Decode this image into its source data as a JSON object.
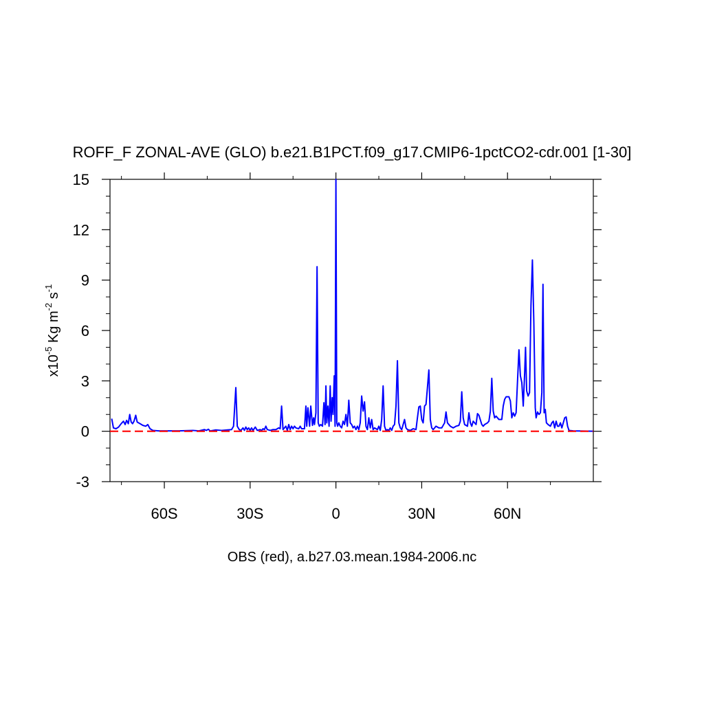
{
  "chart_data": {
    "type": "line",
    "title": "ROFF_F ZONAL-AVE (GLO) b.e21.B1PCT.f09_g17.CMIP6-1pctCO2-cdr.001 [1-30]",
    "ylabel": {
      "prefix": "x10",
      "exp1": "-5",
      "mid": " Kg m",
      "exp2": "-2",
      "mid2": " s",
      "exp3": "-1"
    },
    "xlabel": "OBS (red), a.b27.03.mean.1984-2006.nc",
    "xlim": [
      -79,
      90
    ],
    "ylim": [
      -3,
      15
    ],
    "x_ticks": [
      {
        "value": -60,
        "label": "60S"
      },
      {
        "value": -30,
        "label": "30S"
      },
      {
        "value": 0,
        "label": "0"
      },
      {
        "value": 30,
        "label": "30N"
      },
      {
        "value": 60,
        "label": "60N"
      }
    ],
    "y_ticks": [
      {
        "value": -3,
        "label": "-3"
      },
      {
        "value": 0,
        "label": "0"
      },
      {
        "value": 3,
        "label": "3"
      },
      {
        "value": 6,
        "label": "6"
      },
      {
        "value": 9,
        "label": "9"
      },
      {
        "value": 12,
        "label": "12"
      },
      {
        "value": 15,
        "label": "15"
      }
    ],
    "series": [
      {
        "color": "#0000ff",
        "style": "solid",
        "points": [
          [
            -78.4,
            0.75
          ],
          [
            -77.8,
            0.2
          ],
          [
            -76.9,
            0.15
          ],
          [
            -76.0,
            0.25
          ],
          [
            -75.1,
            0.45
          ],
          [
            -74.3,
            0.6
          ],
          [
            -73.7,
            0.4
          ],
          [
            -73.2,
            0.65
          ],
          [
            -72.6,
            0.45
          ],
          [
            -72.1,
            1.0
          ],
          [
            -71.6,
            0.55
          ],
          [
            -71.1,
            0.45
          ],
          [
            -70.6,
            0.6
          ],
          [
            -70.0,
            0.95
          ],
          [
            -69.5,
            0.55
          ],
          [
            -68.5,
            0.45
          ],
          [
            -67.5,
            0.35
          ],
          [
            -66.5,
            0.3
          ],
          [
            -65.8,
            0.4
          ],
          [
            -65.0,
            0.15
          ],
          [
            -64.0,
            0.05
          ],
          [
            -62.0,
            0.02
          ],
          [
            -55.0,
            0.02
          ],
          [
            -50.0,
            0.05
          ],
          [
            -48.0,
            0.02
          ],
          [
            -46.0,
            0.1
          ],
          [
            -45.3,
            0.05
          ],
          [
            -44.6,
            0.12
          ],
          [
            -44.0,
            0.02
          ],
          [
            -42.0,
            0.08
          ],
          [
            -40.0,
            0.05
          ],
          [
            -38.0,
            0.08
          ],
          [
            -36.5,
            0.1
          ],
          [
            -35.8,
            0.3
          ],
          [
            -35.0,
            2.6
          ],
          [
            -34.5,
            0.3
          ],
          [
            -33.8,
            0.1
          ],
          [
            -33.2,
            0.05
          ],
          [
            -32.5,
            0.2
          ],
          [
            -32.0,
            0.05
          ],
          [
            -31.5,
            0.25
          ],
          [
            -31.0,
            0.1
          ],
          [
            -30.5,
            0.2
          ],
          [
            -30.0,
            0.05
          ],
          [
            -29.5,
            0.2
          ],
          [
            -29.0,
            0.05
          ],
          [
            -28.2,
            0.25
          ],
          [
            -27.5,
            0.05
          ],
          [
            -26.5,
            0.1
          ],
          [
            -26.0,
            0.05
          ],
          [
            -25.5,
            0.15
          ],
          [
            -25.0,
            0.1
          ],
          [
            -24.5,
            0.3
          ],
          [
            -24.0,
            0.1
          ],
          [
            -23.0,
            0.05
          ],
          [
            -22.0,
            0.1
          ],
          [
            -21.0,
            0.1
          ],
          [
            -20.0,
            0.2
          ],
          [
            -19.5,
            0.15
          ],
          [
            -19.0,
            1.5
          ],
          [
            -18.5,
            0.1
          ],
          [
            -17.5,
            0.3
          ],
          [
            -17.0,
            0.05
          ],
          [
            -16.5,
            0.4
          ],
          [
            -16.0,
            0.1
          ],
          [
            -15.5,
            0.3
          ],
          [
            -15.0,
            0.15
          ],
          [
            -14.5,
            0.3
          ],
          [
            -14.0,
            0.2
          ],
          [
            -13.0,
            0.15
          ],
          [
            -12.5,
            0.3
          ],
          [
            -12.0,
            0.15
          ],
          [
            -11.0,
            0.15
          ],
          [
            -10.5,
            1.5
          ],
          [
            -10.2,
            0.3
          ],
          [
            -9.8,
            1.4
          ],
          [
            -9.2,
            0.3
          ],
          [
            -8.8,
            1.5
          ],
          [
            -8.2,
            0.35
          ],
          [
            -7.8,
            0.8
          ],
          [
            -7.5,
            0.4
          ],
          [
            -7.0,
            1.1
          ],
          [
            -6.6,
            9.8
          ],
          [
            -6.2,
            0.5
          ],
          [
            -5.8,
            0.3
          ],
          [
            -5.3,
            0.4
          ],
          [
            -4.7,
            0.3
          ],
          [
            -4.2,
            1.7
          ],
          [
            -3.8,
            0.4
          ],
          [
            -3.5,
            2.7
          ],
          [
            -3.2,
            0.5
          ],
          [
            -2.8,
            1.5
          ],
          [
            -2.4,
            0.3
          ],
          [
            -2.0,
            2.7
          ],
          [
            -1.7,
            0.6
          ],
          [
            -1.3,
            2.0
          ],
          [
            -1.0,
            1.0
          ],
          [
            -0.6,
            3.3
          ],
          [
            -0.3,
            0.3
          ],
          [
            0.0,
            15.0
          ],
          [
            0.3,
            0.5
          ],
          [
            0.6,
            0.3
          ],
          [
            1.0,
            0.5
          ],
          [
            1.5,
            0.3
          ],
          [
            2.0,
            0.2
          ],
          [
            2.5,
            0.6
          ],
          [
            3.0,
            0.4
          ],
          [
            3.5,
            1.0
          ],
          [
            4.0,
            0.3
          ],
          [
            4.5,
            1.85
          ],
          [
            5.0,
            0.5
          ],
          [
            5.5,
            0.4
          ],
          [
            6.0,
            0.2
          ],
          [
            6.5,
            0.3
          ],
          [
            7.0,
            0.1
          ],
          [
            7.5,
            0.3
          ],
          [
            8.0,
            0.1
          ],
          [
            8.5,
            0.5
          ],
          [
            9.0,
            2.1
          ],
          [
            9.5,
            1.2
          ],
          [
            10.0,
            1.75
          ],
          [
            10.5,
            0.3
          ],
          [
            11.0,
            0.1
          ],
          [
            11.5,
            0.8
          ],
          [
            12.0,
            0.2
          ],
          [
            12.5,
            0.7
          ],
          [
            13.0,
            0.1
          ],
          [
            13.5,
            0.2
          ],
          [
            14.5,
            0.1
          ],
          [
            15.0,
            0.3
          ],
          [
            15.5,
            0.05
          ],
          [
            16.0,
            0.7
          ],
          [
            16.5,
            2.7
          ],
          [
            17.0,
            0.3
          ],
          [
            17.5,
            0.05
          ],
          [
            18.0,
            0.1
          ],
          [
            18.5,
            0.05
          ],
          [
            19.0,
            0.2
          ],
          [
            19.5,
            0.05
          ],
          [
            20.0,
            0.3
          ],
          [
            20.5,
            0.4
          ],
          [
            21.0,
            1.5
          ],
          [
            21.5,
            4.2
          ],
          [
            22.0,
            0.5
          ],
          [
            22.5,
            0.2
          ],
          [
            23.0,
            0.1
          ],
          [
            23.5,
            0.4
          ],
          [
            24.0,
            0.7
          ],
          [
            24.5,
            0.2
          ],
          [
            25.0,
            0.1
          ],
          [
            26.0,
            0.05
          ],
          [
            27.0,
            0.15
          ],
          [
            28.0,
            0.1
          ],
          [
            28.5,
            0.8
          ],
          [
            29.0,
            1.45
          ],
          [
            29.5,
            1.5
          ],
          [
            30.0,
            0.7
          ],
          [
            30.5,
            0.5
          ],
          [
            31.0,
            1.5
          ],
          [
            31.5,
            1.6
          ],
          [
            32.0,
            2.6
          ],
          [
            32.5,
            3.65
          ],
          [
            33.0,
            0.7
          ],
          [
            33.5,
            0.2
          ],
          [
            34.0,
            0.1
          ],
          [
            35.0,
            0.3
          ],
          [
            36.0,
            0.2
          ],
          [
            37.0,
            0.2
          ],
          [
            38.0,
            0.5
          ],
          [
            38.5,
            1.15
          ],
          [
            39.0,
            0.5
          ],
          [
            40.0,
            0.3
          ],
          [
            41.0,
            0.2
          ],
          [
            42.0,
            0.3
          ],
          [
            43.0,
            0.35
          ],
          [
            43.5,
            0.6
          ],
          [
            44.0,
            2.35
          ],
          [
            44.5,
            0.8
          ],
          [
            45.0,
            0.4
          ],
          [
            46.0,
            0.3
          ],
          [
            46.5,
            1.1
          ],
          [
            47.0,
            0.5
          ],
          [
            47.5,
            0.3
          ],
          [
            48.0,
            0.6
          ],
          [
            49.0,
            0.4
          ],
          [
            49.5,
            1.05
          ],
          [
            50.0,
            0.95
          ],
          [
            51.0,
            0.4
          ],
          [
            51.5,
            0.3
          ],
          [
            52.0,
            0.4
          ],
          [
            53.0,
            0.5
          ],
          [
            53.5,
            0.6
          ],
          [
            54.0,
            1.2
          ],
          [
            54.5,
            3.15
          ],
          [
            55.0,
            1.2
          ],
          [
            55.5,
            0.8
          ],
          [
            56.0,
            0.9
          ],
          [
            57.0,
            0.7
          ],
          [
            58.0,
            0.7
          ],
          [
            58.5,
            1.5
          ],
          [
            59.0,
            1.9
          ],
          [
            59.5,
            2.05
          ],
          [
            60.5,
            2.05
          ],
          [
            61.0,
            1.8
          ],
          [
            61.5,
            0.8
          ],
          [
            62.0,
            1.1
          ],
          [
            62.5,
            0.9
          ],
          [
            63.0,
            1.1
          ],
          [
            63.5,
            3.0
          ],
          [
            64.0,
            4.85
          ],
          [
            64.5,
            3.3
          ],
          [
            65.0,
            2.9
          ],
          [
            65.5,
            1.5
          ],
          [
            66.0,
            3.5
          ],
          [
            66.3,
            5.0
          ],
          [
            66.7,
            2.4
          ],
          [
            67.2,
            2.1
          ],
          [
            67.7,
            2.3
          ],
          [
            68.2,
            7.5
          ],
          [
            68.7,
            10.2
          ],
          [
            69.2,
            6.5
          ],
          [
            69.7,
            1.4
          ],
          [
            70.0,
            0.8
          ],
          [
            70.5,
            1.15
          ],
          [
            71.0,
            1.0
          ],
          [
            71.5,
            1.1
          ],
          [
            72.0,
            2.3
          ],
          [
            72.4,
            8.75
          ],
          [
            72.8,
            1.1
          ],
          [
            73.2,
            1.3
          ],
          [
            73.6,
            0.5
          ],
          [
            74.2,
            0.4
          ],
          [
            75.0,
            0.3
          ],
          [
            75.5,
            0.5
          ],
          [
            76.0,
            0.6
          ],
          [
            76.5,
            0.2
          ],
          [
            77.0,
            0.6
          ],
          [
            77.5,
            0.3
          ],
          [
            78.0,
            0.3
          ],
          [
            78.5,
            0.5
          ],
          [
            79.0,
            0.2
          ],
          [
            80.0,
            0.8
          ],
          [
            80.5,
            0.85
          ],
          [
            81.0,
            0.3
          ],
          [
            81.5,
            0.05
          ],
          [
            83.0,
            0.02
          ],
          [
            90.0,
            0.0
          ]
        ]
      },
      {
        "color": "#ff0000",
        "style": "dashed",
        "points": [
          [
            -79,
            0.0
          ],
          [
            90,
            0.0
          ]
        ]
      }
    ]
  }
}
